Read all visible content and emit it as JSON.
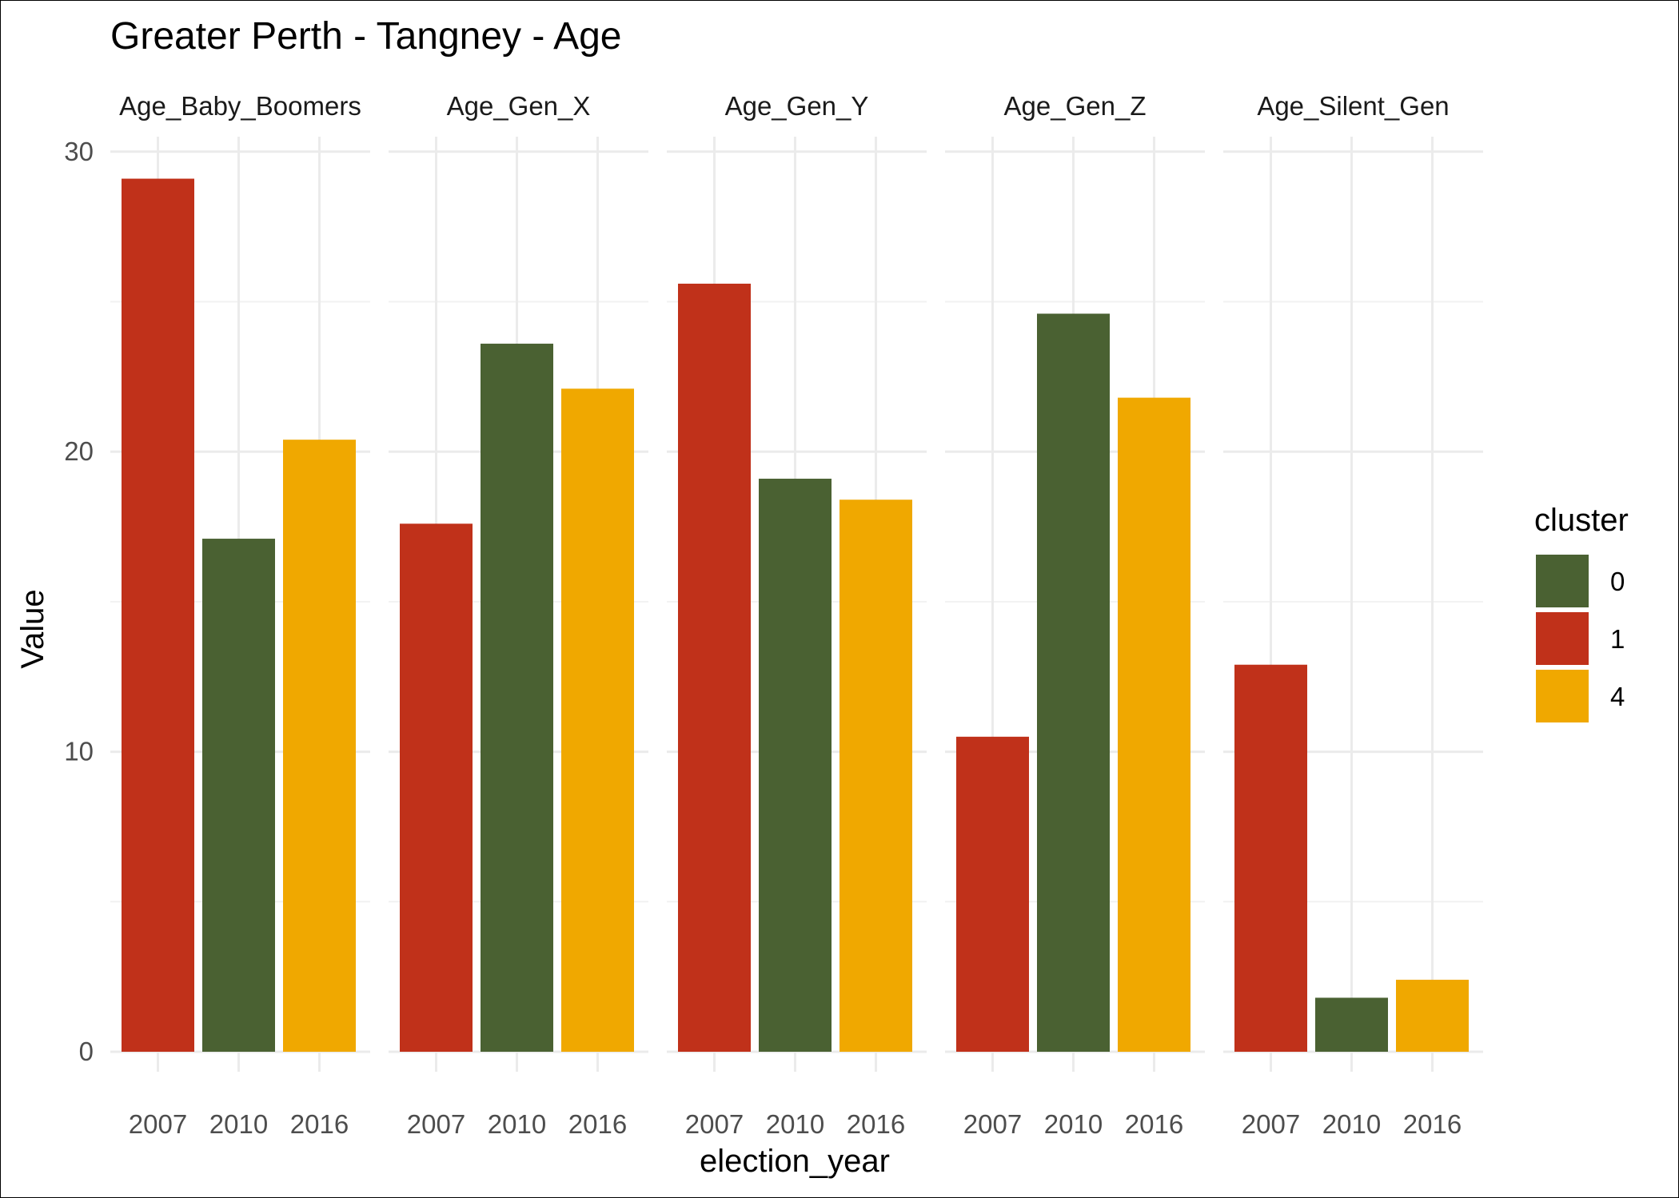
{
  "chart_data": {
    "type": "bar",
    "title": "Greater Perth - Tangney - Age",
    "xlabel": "election_year",
    "ylabel": "Value",
    "ylim": [
      0,
      30.5
    ],
    "yticks": [
      0,
      10,
      20,
      30
    ],
    "grid": true,
    "legend": {
      "title": "cluster",
      "placement": "right",
      "entries": [
        {
          "label": "0",
          "color": "#4a6132"
        },
        {
          "label": "1",
          "color": "#c0311a"
        },
        {
          "label": "4",
          "color": "#f0a800"
        }
      ]
    },
    "categories": [
      "2007",
      "2010",
      "2016"
    ],
    "facets": [
      {
        "name": "Age_Baby_Boomers",
        "values": [
          29.1,
          17.1,
          20.4
        ],
        "clusters": [
          "1",
          "0",
          "4"
        ]
      },
      {
        "name": "Age_Gen_X",
        "values": [
          17.6,
          23.6,
          22.1
        ],
        "clusters": [
          "1",
          "0",
          "4"
        ]
      },
      {
        "name": "Age_Gen_Y",
        "values": [
          25.6,
          19.1,
          18.4
        ],
        "clusters": [
          "1",
          "0",
          "4"
        ]
      },
      {
        "name": "Age_Gen_Z",
        "values": [
          10.5,
          24.6,
          21.8
        ],
        "clusters": [
          "1",
          "0",
          "4"
        ]
      },
      {
        "name": "Age_Silent_Gen",
        "values": [
          12.9,
          1.8,
          2.4
        ],
        "clusters": [
          "1",
          "0",
          "4"
        ]
      }
    ]
  }
}
